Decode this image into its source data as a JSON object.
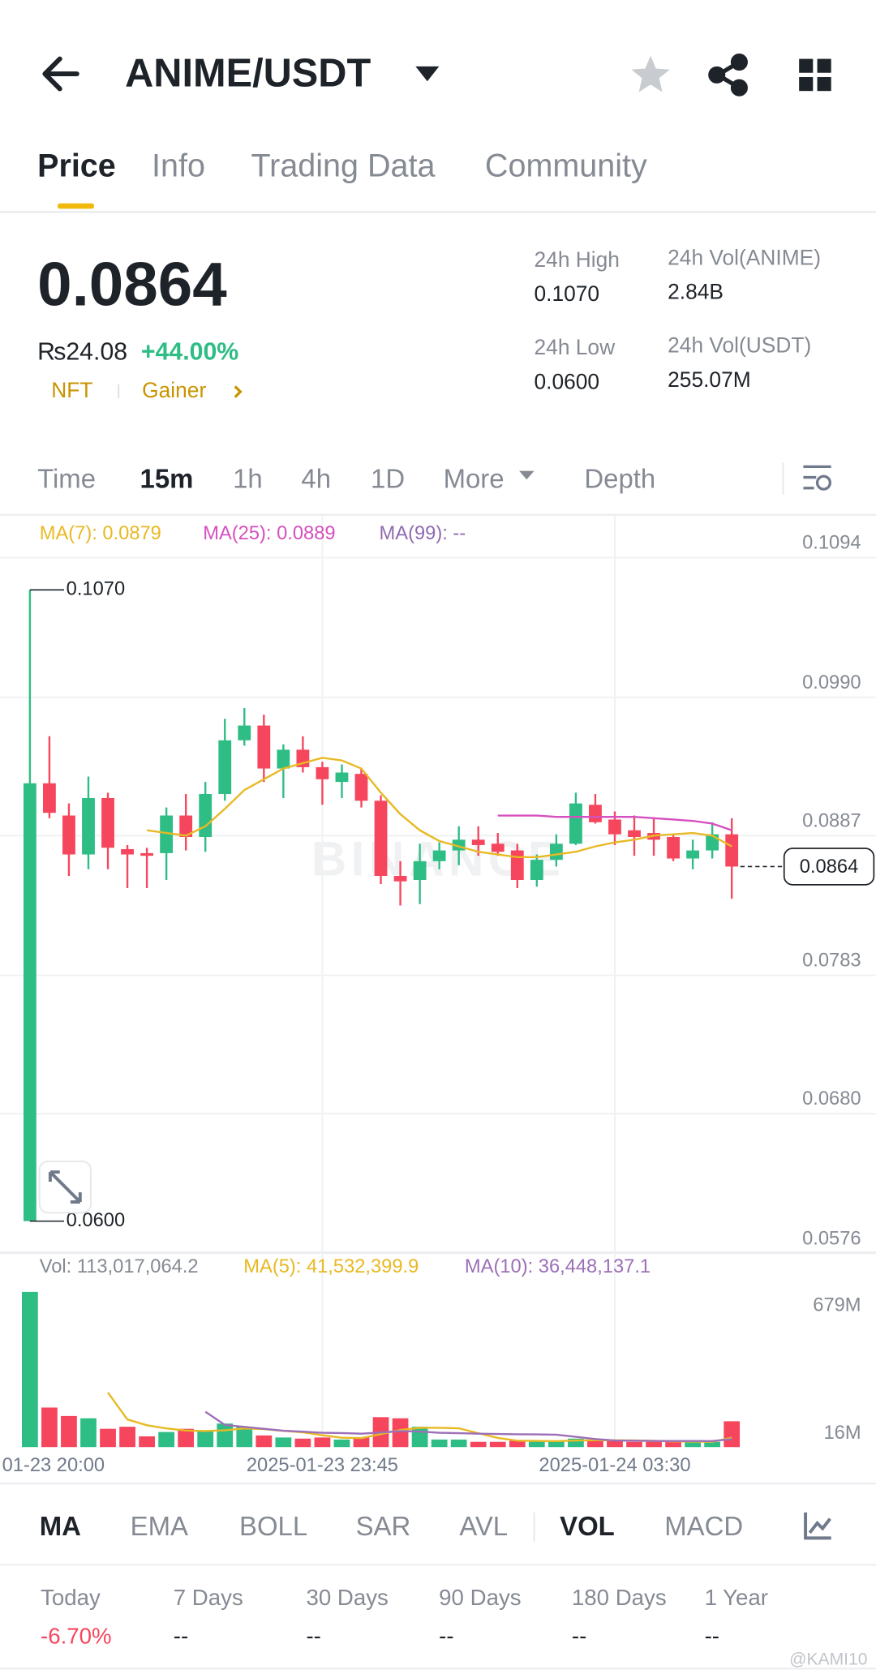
{
  "header": {
    "pair": "ANIME/USDT"
  },
  "tabs": [
    "Price",
    "Info",
    "Trading Data",
    "Community"
  ],
  "ticker": {
    "price": "0.0864",
    "local_price": "₨24.08",
    "change": "+44.00%",
    "tags": [
      "NFT",
      "Gainer"
    ],
    "stats": [
      {
        "label": "24h High",
        "value": "0.1070"
      },
      {
        "label": "24h Low",
        "value": "0.0600"
      },
      {
        "label": "24h Vol(ANIME)",
        "value": "2.84B"
      },
      {
        "label": "24h Vol(USDT)",
        "value": "255.07M"
      }
    ]
  },
  "intervals": [
    "Time",
    "15m",
    "1h",
    "4h",
    "1D",
    "More",
    "Depth"
  ],
  "chart_data": {
    "type": "candlestick",
    "watermark": "BINANCE",
    "ylim": [
      0.0576,
      0.1094
    ],
    "yticks": [
      0.1094,
      {
        "value": 0.099,
        "label": "0.0990"
      },
      0.0887,
      0.0783,
      {
        "value": 0.068,
        "label": "0.0680"
      },
      0.0576
    ],
    "grid": true,
    "xticks": [
      {
        "value": 0,
        "label": "01-23 20:00"
      },
      {
        "value": 15,
        "label": "2025-01-23 23:45"
      },
      {
        "value": 30,
        "label": "2025-01-24 03:30"
      }
    ],
    "up_color": "#2ebd85",
    "down_color": "#f6465d",
    "high_label": "0.1070",
    "low_label": "0.0600",
    "current_price_label": "0.0864",
    "candles": {
      "open": [
        0.06,
        0.0926,
        0.0902,
        0.0873,
        0.0915,
        0.0877,
        0.0874,
        0.0874,
        0.0902,
        0.0886,
        0.0918,
        0.0958,
        0.0969,
        0.0937,
        0.0951,
        0.0938,
        0.0927,
        0.0933,
        0.0913,
        0.0857,
        0.0854,
        0.0868,
        0.0876,
        0.0884,
        0.0881,
        0.0876,
        0.0854,
        0.0869,
        0.0881,
        0.091,
        0.0899,
        0.0891,
        0.0889,
        0.0886,
        0.087,
        0.0876,
        0.0888
      ],
      "high": [
        0.107,
        0.0961,
        0.0911,
        0.0931,
        0.0919,
        0.088,
        0.0878,
        0.0908,
        0.0918,
        0.0927,
        0.0974,
        0.0982,
        0.0977,
        0.0955,
        0.0961,
        0.0942,
        0.094,
        0.0937,
        0.0917,
        0.0868,
        0.0881,
        0.0882,
        0.0894,
        0.0894,
        0.0889,
        0.0881,
        0.0873,
        0.0888,
        0.0919,
        0.0918,
        0.0905,
        0.0902,
        0.09,
        0.0888,
        0.0884,
        0.0897,
        0.09
      ],
      "low": [
        0.06,
        0.09,
        0.0857,
        0.0862,
        0.0862,
        0.0848,
        0.0848,
        0.0854,
        0.0876,
        0.0875,
        0.0913,
        0.0954,
        0.0927,
        0.0915,
        0.0934,
        0.091,
        0.0915,
        0.0908,
        0.0851,
        0.0835,
        0.0836,
        0.0862,
        0.0865,
        0.0872,
        0.0872,
        0.0848,
        0.0849,
        0.0864,
        0.088,
        0.0896,
        0.088,
        0.0872,
        0.0872,
        0.0868,
        0.0862,
        0.087,
        0.084
      ],
      "close": [
        0.0926,
        0.0904,
        0.0873,
        0.0915,
        0.0878,
        0.0873,
        0.0872,
        0.0902,
        0.0886,
        0.0918,
        0.0958,
        0.0969,
        0.0937,
        0.0951,
        0.0938,
        0.0929,
        0.0934,
        0.0913,
        0.0857,
        0.0853,
        0.0868,
        0.0876,
        0.0884,
        0.088,
        0.0875,
        0.0854,
        0.0869,
        0.0881,
        0.0911,
        0.0897,
        0.0888,
        0.0886,
        0.0884,
        0.087,
        0.0876,
        0.0888,
        0.0864
      ]
    },
    "series": [
      {
        "name": "MA(7): 0.0879",
        "color": "#e8b923",
        "values": [
          null,
          null,
          null,
          null,
          null,
          null,
          0.0891,
          0.0889,
          0.0887,
          0.0894,
          0.0907,
          0.0921,
          0.0929,
          0.0937,
          0.0941,
          0.0945,
          0.0943,
          0.0937,
          0.0919,
          0.0903,
          0.0891,
          0.0883,
          0.0879,
          0.0875,
          0.0873,
          0.0871,
          0.0871,
          0.0873,
          0.0875,
          0.0879,
          0.0882,
          0.0884,
          0.0887,
          0.0888,
          0.0889,
          0.0887,
          0.0879
        ]
      },
      {
        "name": "MA(25): 0.0889",
        "color": "#d64fbf",
        "values": [
          null,
          null,
          null,
          null,
          null,
          null,
          null,
          null,
          null,
          null,
          null,
          null,
          null,
          null,
          null,
          null,
          null,
          null,
          null,
          null,
          null,
          null,
          null,
          null,
          0.0902,
          0.0902,
          0.0902,
          0.0901,
          0.0901,
          0.0901,
          0.0901,
          0.0901,
          0.09,
          0.0899,
          0.0898,
          0.0896,
          0.0891
        ]
      },
      {
        "name": "MA(99): --",
        "color": "#8e6bb0"
      }
    ],
    "volume": {
      "ylim": [
        0,
        679
      ],
      "yticks": [
        {
          "value": 679,
          "label": "679M"
        },
        {
          "value": 16,
          "label": "16M"
        }
      ],
      "values": [
        679,
        173,
        136,
        126,
        80,
        89,
        47,
        66,
        80,
        70,
        103,
        89,
        51,
        42,
        37,
        42,
        33,
        42,
        131,
        126,
        89,
        33,
        33,
        23,
        23,
        28,
        28,
        28,
        37,
        28,
        28,
        23,
        23,
        23,
        23,
        23,
        113
      ],
      "series": [
        {
          "name": "Vol: 113,017,064.2",
          "color": "#858a93"
        },
        {
          "name": "MA(5): 41,532,399.9",
          "color": "#e8b923",
          "values": [
            null,
            null,
            null,
            null,
            238.8,
            120.8,
            95.6,
            81.6,
            72.4,
            70.4,
            73.2,
            81.6,
            78.6,
            71,
            64.4,
            52.2,
            41,
            39.2,
            57,
            74.8,
            84.2,
            84.2,
            82.4,
            60.8,
            40.2,
            28,
            27,
            26,
            28.8,
            29.8,
            29.8,
            28.8,
            27.8,
            25,
            24,
            23,
            41
          ]
        },
        {
          "name": "MA(10): 36,448,137.1",
          "color": "#9c6fb8",
          "values": [
            null,
            null,
            null,
            null,
            null,
            null,
            null,
            null,
            null,
            154.6,
            97,
            88.6,
            80.1,
            71.7,
            67.4,
            62.7,
            61.3,
            58.9,
            64,
            69.6,
            68.2,
            62.6,
            60.8,
            58.9,
            57.5,
            56.1,
            55.6,
            54.2,
            44.8,
            35,
            28.9,
            27.9,
            26.9,
            26.9,
            26.9,
            26.4,
            34.9
          ]
        }
      ]
    }
  },
  "indicators": [
    "MA",
    "EMA",
    "BOLL",
    "SAR",
    "AVL",
    "VOL",
    "MACD"
  ],
  "performance": [
    {
      "label": "Today",
      "value": "-6.70%"
    },
    {
      "label": "7 Days",
      "value": "--"
    },
    {
      "label": "30 Days",
      "value": "--"
    },
    {
      "label": "90 Days",
      "value": "--"
    },
    {
      "label": "180 Days",
      "value": "--"
    },
    {
      "label": "1 Year",
      "value": "--"
    }
  ],
  "watermark_user": "@KAMI10"
}
